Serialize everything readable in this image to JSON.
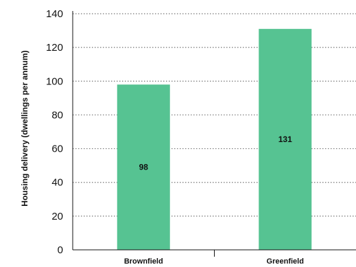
{
  "chart_data": {
    "type": "bar",
    "title": "",
    "xlabel": "",
    "ylabel": "Housing delivery (dwellings per annum)",
    "categories": [
      "Brownfield",
      "Greenfield"
    ],
    "values": [
      98,
      131
    ],
    "data_labels": [
      "98",
      "131"
    ],
    "ylim": [
      0,
      140
    ],
    "yticks": [
      0,
      20,
      40,
      60,
      80,
      100,
      120,
      140
    ],
    "ytick_labels": [
      "0",
      "20",
      "40",
      "60",
      "80",
      "100",
      "120",
      "140"
    ],
    "grid": "horizontal dotted",
    "legend": "none",
    "bar_color": "#56c392"
  }
}
